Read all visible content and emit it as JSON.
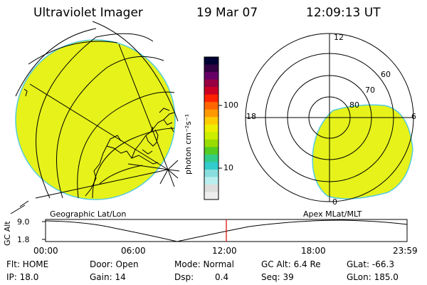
{
  "header": {
    "title": "Ultraviolet Imager",
    "date": "19 Mar 07",
    "time": "12:09:13 UT"
  },
  "colorbar": {
    "unit_label": "photon cm⁻²s⁻¹",
    "ticks": [
      "100",
      "10"
    ],
    "colors": [
      "#000033",
      "#330044",
      "#660066",
      "#990044",
      "#cc0022",
      "#ff2200",
      "#ff6600",
      "#ff9900",
      "#ffcc00",
      "#eeee00",
      "#ccee00",
      "#99dd00",
      "#55cc22",
      "#33cc88",
      "#33cccc",
      "#88dddd",
      "#bbeeee",
      "#dddddd",
      "#eeeeee"
    ]
  },
  "left_map": {
    "label": "Geographic Lat/Lon",
    "fill_color": "#e6f21a"
  },
  "right_map": {
    "label": "Apex MLat/MLT",
    "fill_color": "#e6f21a",
    "mlt_labels": [
      "12",
      "18",
      "6",
      "0"
    ],
    "lat_labels": [
      "60",
      "70",
      "80"
    ]
  },
  "timeline": {
    "ylabel": "GC Alt",
    "yticks": [
      "9.0",
      "1.8"
    ],
    "xticks": [
      "00:00",
      "06:00",
      "12:00",
      "18:00",
      "23:59"
    ],
    "marker_color": "#dd0000"
  },
  "info": {
    "flt": "Flt: HOME",
    "ip": "IP: 18.0",
    "door": "Door: Open",
    "gain": "Gain: 14",
    "mode": "Mode: Normal",
    "dsp_label": "Dsp:",
    "dsp_value": "0.4",
    "gcalt": "GC Alt: 6.4 Re",
    "seq": "Seq: 39",
    "glat": "GLat: -66.3",
    "glon": "GLon: 185.0"
  }
}
